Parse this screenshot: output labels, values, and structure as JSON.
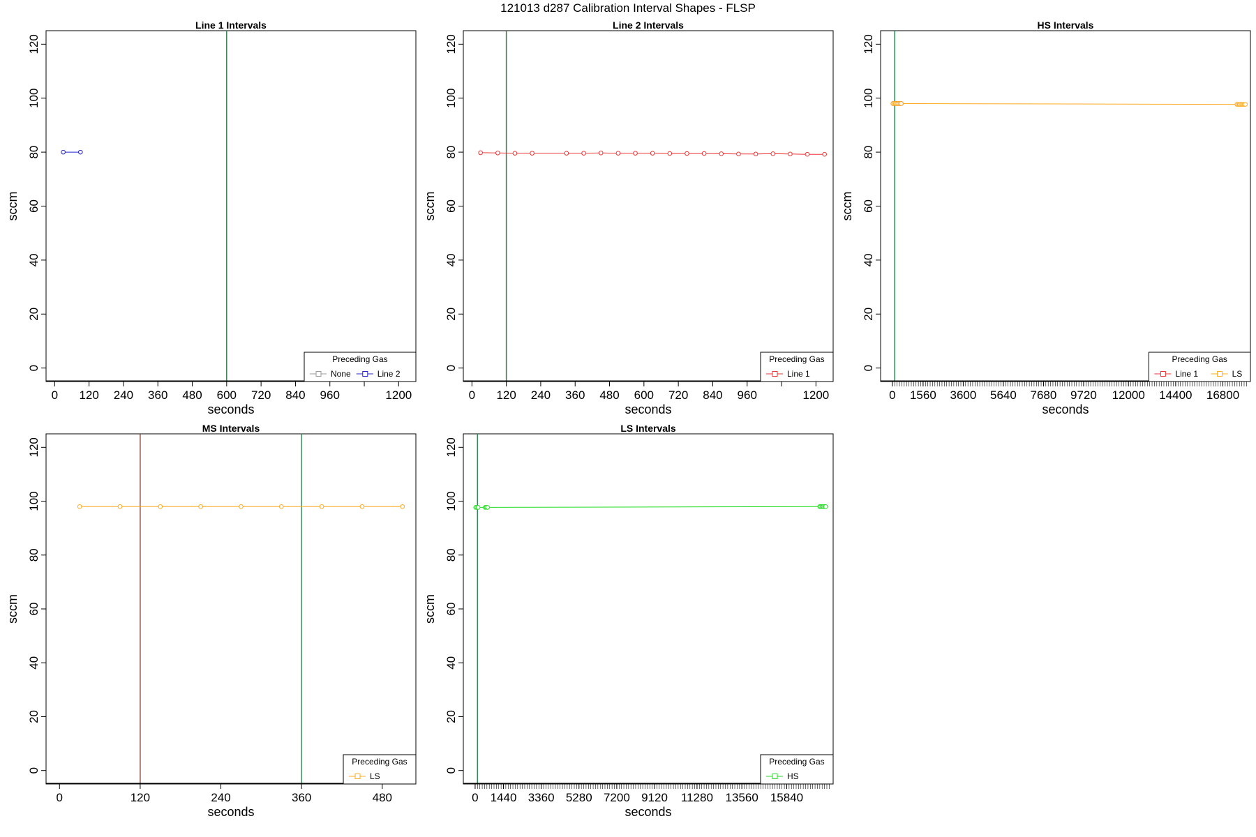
{
  "figure": {
    "title": "121013   d287   Calibration Interval Shapes - FLSP"
  },
  "chart_data": [
    {
      "id": "line1",
      "type": "line",
      "title": "Line 1 Intervals",
      "xlabel": "seconds",
      "ylabel": "sccm",
      "xlim": [
        -30,
        1260
      ],
      "ylim": [
        -5,
        125
      ],
      "xticks": [
        0,
        120,
        240,
        360,
        480,
        600,
        720,
        840,
        960,
        1080,
        1200
      ],
      "xtick_labels": [
        "0",
        "120",
        "240",
        "360",
        "480",
        "600",
        "720",
        "840",
        "960",
        "",
        "1200"
      ],
      "yticks": [
        0,
        20,
        40,
        60,
        80,
        100,
        120
      ],
      "vlines": [
        {
          "x": 600,
          "color": "#8b4a3c"
        },
        {
          "x": 600,
          "color": "#2e8b57"
        }
      ],
      "series": [
        {
          "name": "Line 2",
          "color": "#2222cc",
          "x": [
            30,
            90
          ],
          "y": [
            80,
            80
          ]
        }
      ],
      "legend": {
        "title": "Preceding Gas",
        "position": "bottom-right",
        "entries": [
          {
            "label": "None",
            "color": "#999999"
          },
          {
            "label": "Line 2",
            "color": "#2222cc"
          }
        ]
      }
    },
    {
      "id": "line2",
      "type": "line",
      "title": "Line 2 Intervals",
      "xlabel": "seconds",
      "ylabel": "sccm",
      "xlim": [
        -30,
        1260
      ],
      "ylim": [
        -5,
        125
      ],
      "xticks": [
        0,
        120,
        240,
        360,
        480,
        600,
        720,
        840,
        960,
        1080,
        1200
      ],
      "xtick_labels": [
        "0",
        "120",
        "240",
        "360",
        "480",
        "600",
        "720",
        "840",
        "960",
        "",
        "1200"
      ],
      "yticks": [
        0,
        20,
        40,
        60,
        80,
        100,
        120
      ],
      "vlines": [
        {
          "x": 120,
          "color": "#8b4a3c"
        },
        {
          "x": 120,
          "color": "#2e8b57"
        }
      ],
      "series": [
        {
          "name": "Line 1",
          "color": "#ee3333",
          "x": [
            30,
            90,
            150,
            210,
            330,
            390,
            450,
            510,
            570,
            630,
            690,
            750,
            810,
            870,
            930,
            990,
            1050,
            1110,
            1170,
            1230
          ],
          "y": [
            79.8,
            79.7,
            79.6,
            79.6,
            79.6,
            79.6,
            79.7,
            79.6,
            79.6,
            79.6,
            79.5,
            79.5,
            79.5,
            79.4,
            79.3,
            79.3,
            79.4,
            79.3,
            79.2,
            79.2
          ]
        }
      ],
      "legend": {
        "title": "Preceding Gas",
        "position": "bottom-right",
        "entries": [
          {
            "label": "Line 1",
            "color": "#ee3333"
          }
        ]
      }
    },
    {
      "id": "hs",
      "type": "line",
      "title": "HS Intervals",
      "xlabel": "seconds",
      "ylabel": "sccm",
      "xlim": [
        -600,
        18200
      ],
      "ylim": [
        -5,
        125
      ],
      "xticks": [
        0,
        1560,
        3600,
        5640,
        7680,
        9720,
        12000,
        14400,
        16800
      ],
      "xtick_labels": [
        "0",
        "1560",
        "3600",
        "5640",
        "7680",
        "9720",
        "12000",
        "14400",
        "16800"
      ],
      "minor_tick_step": 120,
      "minor_tick_range": [
        0,
        18000
      ],
      "yticks": [
        0,
        20,
        40,
        60,
        80,
        100,
        120
      ],
      "vlines": [
        {
          "x": 120,
          "color": "#8b4a3c"
        },
        {
          "x": 120,
          "color": "#2e8b57"
        }
      ],
      "series": [
        {
          "name": "Line 1",
          "color": "#ee3333",
          "x": [
            30,
            90,
            150,
            210,
            270,
            330,
            390,
            450
          ],
          "y": [
            98,
            98,
            98,
            98,
            98,
            98,
            98,
            98
          ]
        },
        {
          "name": "LS",
          "color": "#ffaa22",
          "x": [
            30,
            90,
            150,
            210,
            270,
            330,
            390,
            450,
            17520,
            17580,
            17640,
            17700,
            17760,
            17820,
            17880,
            17940
          ],
          "y": [
            98,
            98,
            98,
            98,
            98,
            98,
            98,
            98,
            97.7,
            97.7,
            97.7,
            97.7,
            97.7,
            97.7,
            97.7,
            97.7
          ]
        }
      ],
      "legend": {
        "title": "Preceding Gas",
        "position": "bottom-right",
        "entries": [
          {
            "label": "Line 1",
            "color": "#ee3333"
          },
          {
            "label": "LS",
            "color": "#ffaa22"
          }
        ]
      }
    },
    {
      "id": "ms",
      "type": "line",
      "title": "MS Intervals",
      "xlabel": "seconds",
      "ylabel": "sccm",
      "xlim": [
        -20,
        530
      ],
      "ylim": [
        -5,
        125
      ],
      "xticks": [
        0,
        120,
        240,
        360,
        480
      ],
      "xtick_labels": [
        "0",
        "120",
        "240",
        "360",
        "480"
      ],
      "yticks": [
        0,
        20,
        40,
        60,
        80,
        100,
        120
      ],
      "vlines": [
        {
          "x": 120,
          "color": "#8b4a3c"
        },
        {
          "x": 360,
          "color": "#2e8b57"
        }
      ],
      "series": [
        {
          "name": "LS",
          "color": "#ffaa22",
          "x": [
            30,
            90,
            150,
            210,
            270,
            330,
            390,
            450,
            510
          ],
          "y": [
            98,
            98,
            98,
            98,
            98,
            98,
            98,
            98,
            98
          ]
        }
      ],
      "legend": {
        "title": "Preceding Gas",
        "position": "bottom-right",
        "entries": [
          {
            "label": "LS",
            "color": "#ffaa22"
          }
        ]
      }
    },
    {
      "id": "ls",
      "type": "line",
      "title": "LS Intervals",
      "xlabel": "seconds",
      "ylabel": "sccm",
      "xlim": [
        -600,
        18200
      ],
      "ylim": [
        -5,
        125
      ],
      "xticks": [
        0,
        1440,
        3360,
        5280,
        7200,
        9120,
        11280,
        13560,
        15840
      ],
      "xtick_labels": [
        "0",
        "1440",
        "3360",
        "5280",
        "7200",
        "9120",
        "11280",
        "13560",
        "15840"
      ],
      "minor_tick_step": 120,
      "minor_tick_range": [
        0,
        18000
      ],
      "yticks": [
        0,
        20,
        40,
        60,
        80,
        100,
        120
      ],
      "vlines": [
        {
          "x": 120,
          "color": "#8b4a3c"
        },
        {
          "x": 120,
          "color": "#2e8b57"
        }
      ],
      "series": [
        {
          "name": "HS",
          "color": "#22dd22",
          "x": [
            30,
            90,
            150,
            510,
            570,
            630,
            17520,
            17580,
            17640,
            17700,
            17760,
            17820
          ],
          "y": [
            97.7,
            97.7,
            97.7,
            97.7,
            97.7,
            97.7,
            98,
            98,
            98,
            98,
            98,
            98
          ]
        }
      ],
      "legend": {
        "title": "Preceding Gas",
        "position": "bottom-right",
        "entries": [
          {
            "label": "HS",
            "color": "#22dd22"
          }
        ]
      }
    }
  ]
}
